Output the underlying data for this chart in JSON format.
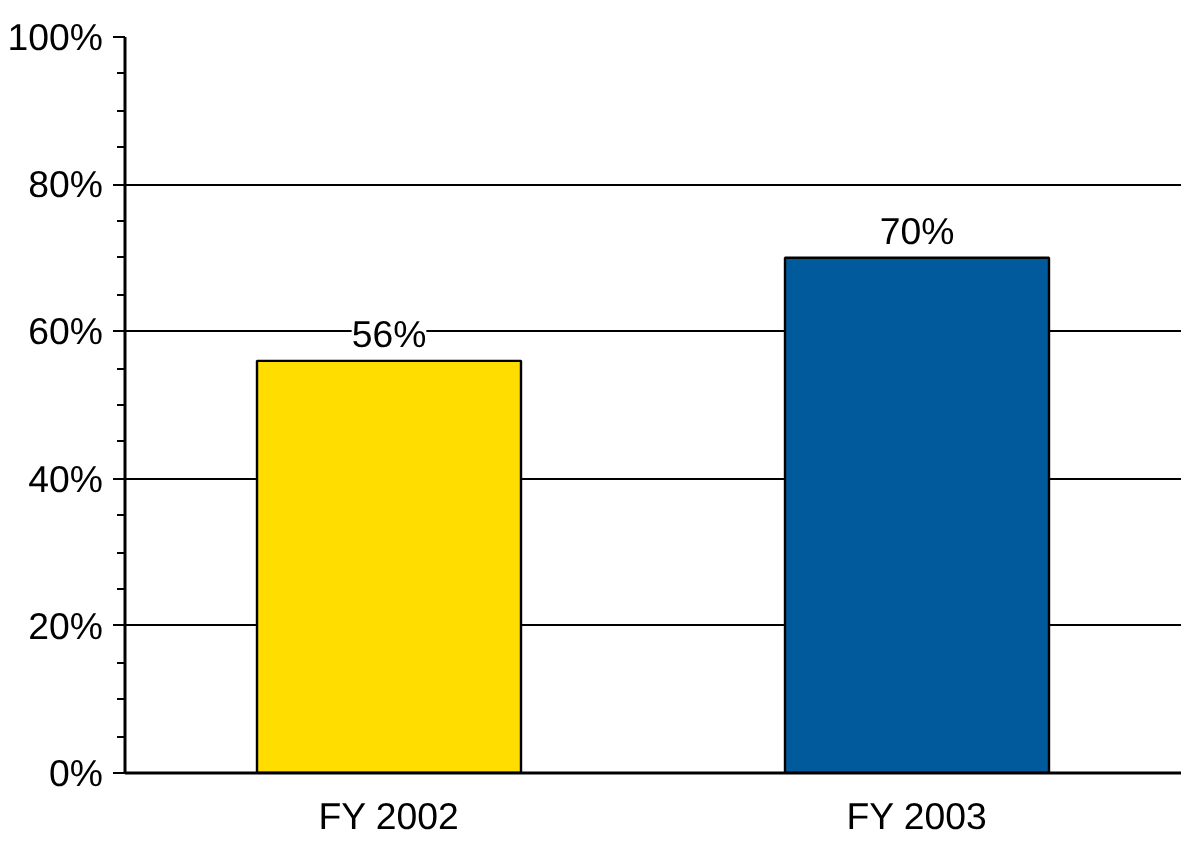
{
  "chart_data": {
    "type": "bar",
    "categories": [
      "FY 2002",
      "FY 2003"
    ],
    "values": [
      56,
      70
    ],
    "colors": [
      "#ffdd00",
      "#005a9c"
    ],
    "ylim": [
      0,
      100
    ],
    "yticks": [
      {
        "value": 0,
        "label": "0%"
      },
      {
        "value": 20,
        "label": "20%"
      },
      {
        "value": 40,
        "label": "40%"
      },
      {
        "value": 60,
        "label": "60%"
      },
      {
        "value": 80,
        "label": "80%"
      },
      {
        "value": 100,
        "label": "100%"
      }
    ],
    "grid": "y",
    "data_labels": true,
    "value_labels": [
      "56%",
      "70%"
    ]
  }
}
